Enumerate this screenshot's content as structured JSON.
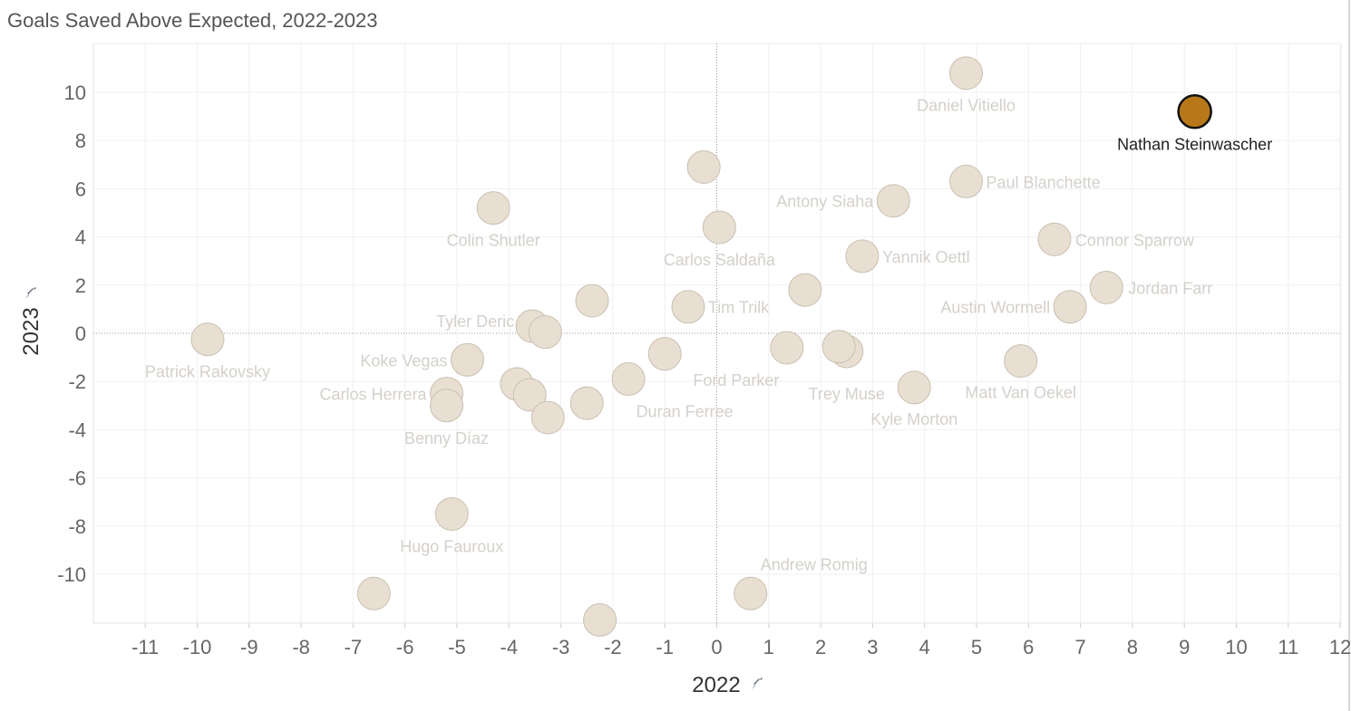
{
  "chart_data": {
    "type": "scatter",
    "title": "Goals Saved Above Expected, 2022-2023",
    "xlabel": "2022",
    "ylabel": "2023",
    "xlim": [
      -12,
      12
    ],
    "ylim": [
      -12,
      12
    ],
    "x_ticks": [
      -11,
      -10,
      -9,
      -8,
      -7,
      -6,
      -5,
      -4,
      -3,
      -2,
      -1,
      0,
      1,
      2,
      3,
      4,
      5,
      6,
      7,
      8,
      9,
      10,
      11,
      12
    ],
    "y_ticks": [
      10,
      8,
      6,
      4,
      2,
      0,
      -2,
      -4,
      -6,
      -8,
      -10
    ],
    "highlight_color": "#b8781a",
    "point_color": "#e8dfd2",
    "points": [
      {
        "name": "Nathan Steinwascher",
        "x": 9.2,
        "y": 9.2,
        "label": "Nathan Steinwascher",
        "highlight": true
      },
      {
        "name": "Daniel Vitiello",
        "x": 4.8,
        "y": 10.8,
        "label": "Daniel Vitiello"
      },
      {
        "name": "Paul Blanchette",
        "x": 4.8,
        "y": 6.3,
        "label": "Paul Blanchette"
      },
      {
        "name": "Antony Siaha",
        "x": 3.4,
        "y": 5.5,
        "label": "Antony Siaha"
      },
      {
        "name": "Connor Sparrow",
        "x": 6.5,
        "y": 3.9,
        "label": "Connor Sparrow"
      },
      {
        "name": "Yannik Oettl",
        "x": 2.8,
        "y": 3.2,
        "label": "Yannik Oettl"
      },
      {
        "name": "Jordan Farr",
        "x": 7.5,
        "y": 1.9,
        "label": "Jordan Farr"
      },
      {
        "name": "Austin Wormell",
        "x": 6.8,
        "y": 1.1,
        "label": "Austin Wormell"
      },
      {
        "name": "Carlos Saldaña",
        "x": 0.05,
        "y": 4.4,
        "label": "Carlos Saldaña"
      },
      {
        "name": "Colin Shutler",
        "x": -4.3,
        "y": 5.2,
        "label": "Colin Shutler"
      },
      {
        "name": "Tim Trilk",
        "x": -0.55,
        "y": 1.1,
        "label": "Tim Trilk"
      },
      {
        "name": "Tyler Deric",
        "x": -3.55,
        "y": 0.3,
        "label": "Tyler Deric"
      },
      {
        "name": "Patrick Rakovsky",
        "x": -9.8,
        "y": -0.25,
        "label": "Patrick Rakovsky"
      },
      {
        "name": "Koke Vegas",
        "x": -4.8,
        "y": -1.1,
        "label": "Koke Vegas"
      },
      {
        "name": "Carlos Herrera",
        "x": -5.2,
        "y": -2.5,
        "label": "Carlos Herrera"
      },
      {
        "name": "Benny Díaz",
        "x": -5.2,
        "y": -3.0,
        "label": "Benny Díaz"
      },
      {
        "name": "Ford Parker",
        "x": 1.35,
        "y": -0.6,
        "label": "Ford Parker"
      },
      {
        "name": "Trey Muse",
        "x": 2.5,
        "y": -0.75,
        "label": "Trey Muse"
      },
      {
        "name": "Kyle Morton",
        "x": 3.8,
        "y": -2.25,
        "label": "Kyle Morton"
      },
      {
        "name": "Matt Van Oekel",
        "x": 5.85,
        "y": -1.15,
        "label": "Matt Van Oekel"
      },
      {
        "name": "Duran Ferree",
        "x": -1.7,
        "y": -1.9,
        "label": "Duran Ferree"
      },
      {
        "name": "Hugo Fauroux",
        "x": -5.1,
        "y": -7.5,
        "label": "Hugo Fauroux"
      },
      {
        "name": "Andrew Romig",
        "x": 0.65,
        "y": -10.8,
        "label": "Andrew Romig"
      },
      {
        "name": "p24",
        "x": -0.25,
        "y": 6.9
      },
      {
        "name": "p25",
        "x": 1.7,
        "y": 1.8
      },
      {
        "name": "p26",
        "x": -2.4,
        "y": 1.35
      },
      {
        "name": "p27",
        "x": -3.3,
        "y": 0.05
      },
      {
        "name": "p28",
        "x": -1.0,
        "y": -0.85
      },
      {
        "name": "p29",
        "x": 2.35,
        "y": -0.55
      },
      {
        "name": "p30",
        "x": -3.85,
        "y": -2.1
      },
      {
        "name": "p31",
        "x": -3.6,
        "y": -2.55
      },
      {
        "name": "p32",
        "x": -2.5,
        "y": -2.9
      },
      {
        "name": "p33",
        "x": -3.25,
        "y": -3.5
      },
      {
        "name": "p34",
        "x": -6.6,
        "y": -10.8
      },
      {
        "name": "p35",
        "x": -2.25,
        "y": -11.9
      }
    ]
  }
}
